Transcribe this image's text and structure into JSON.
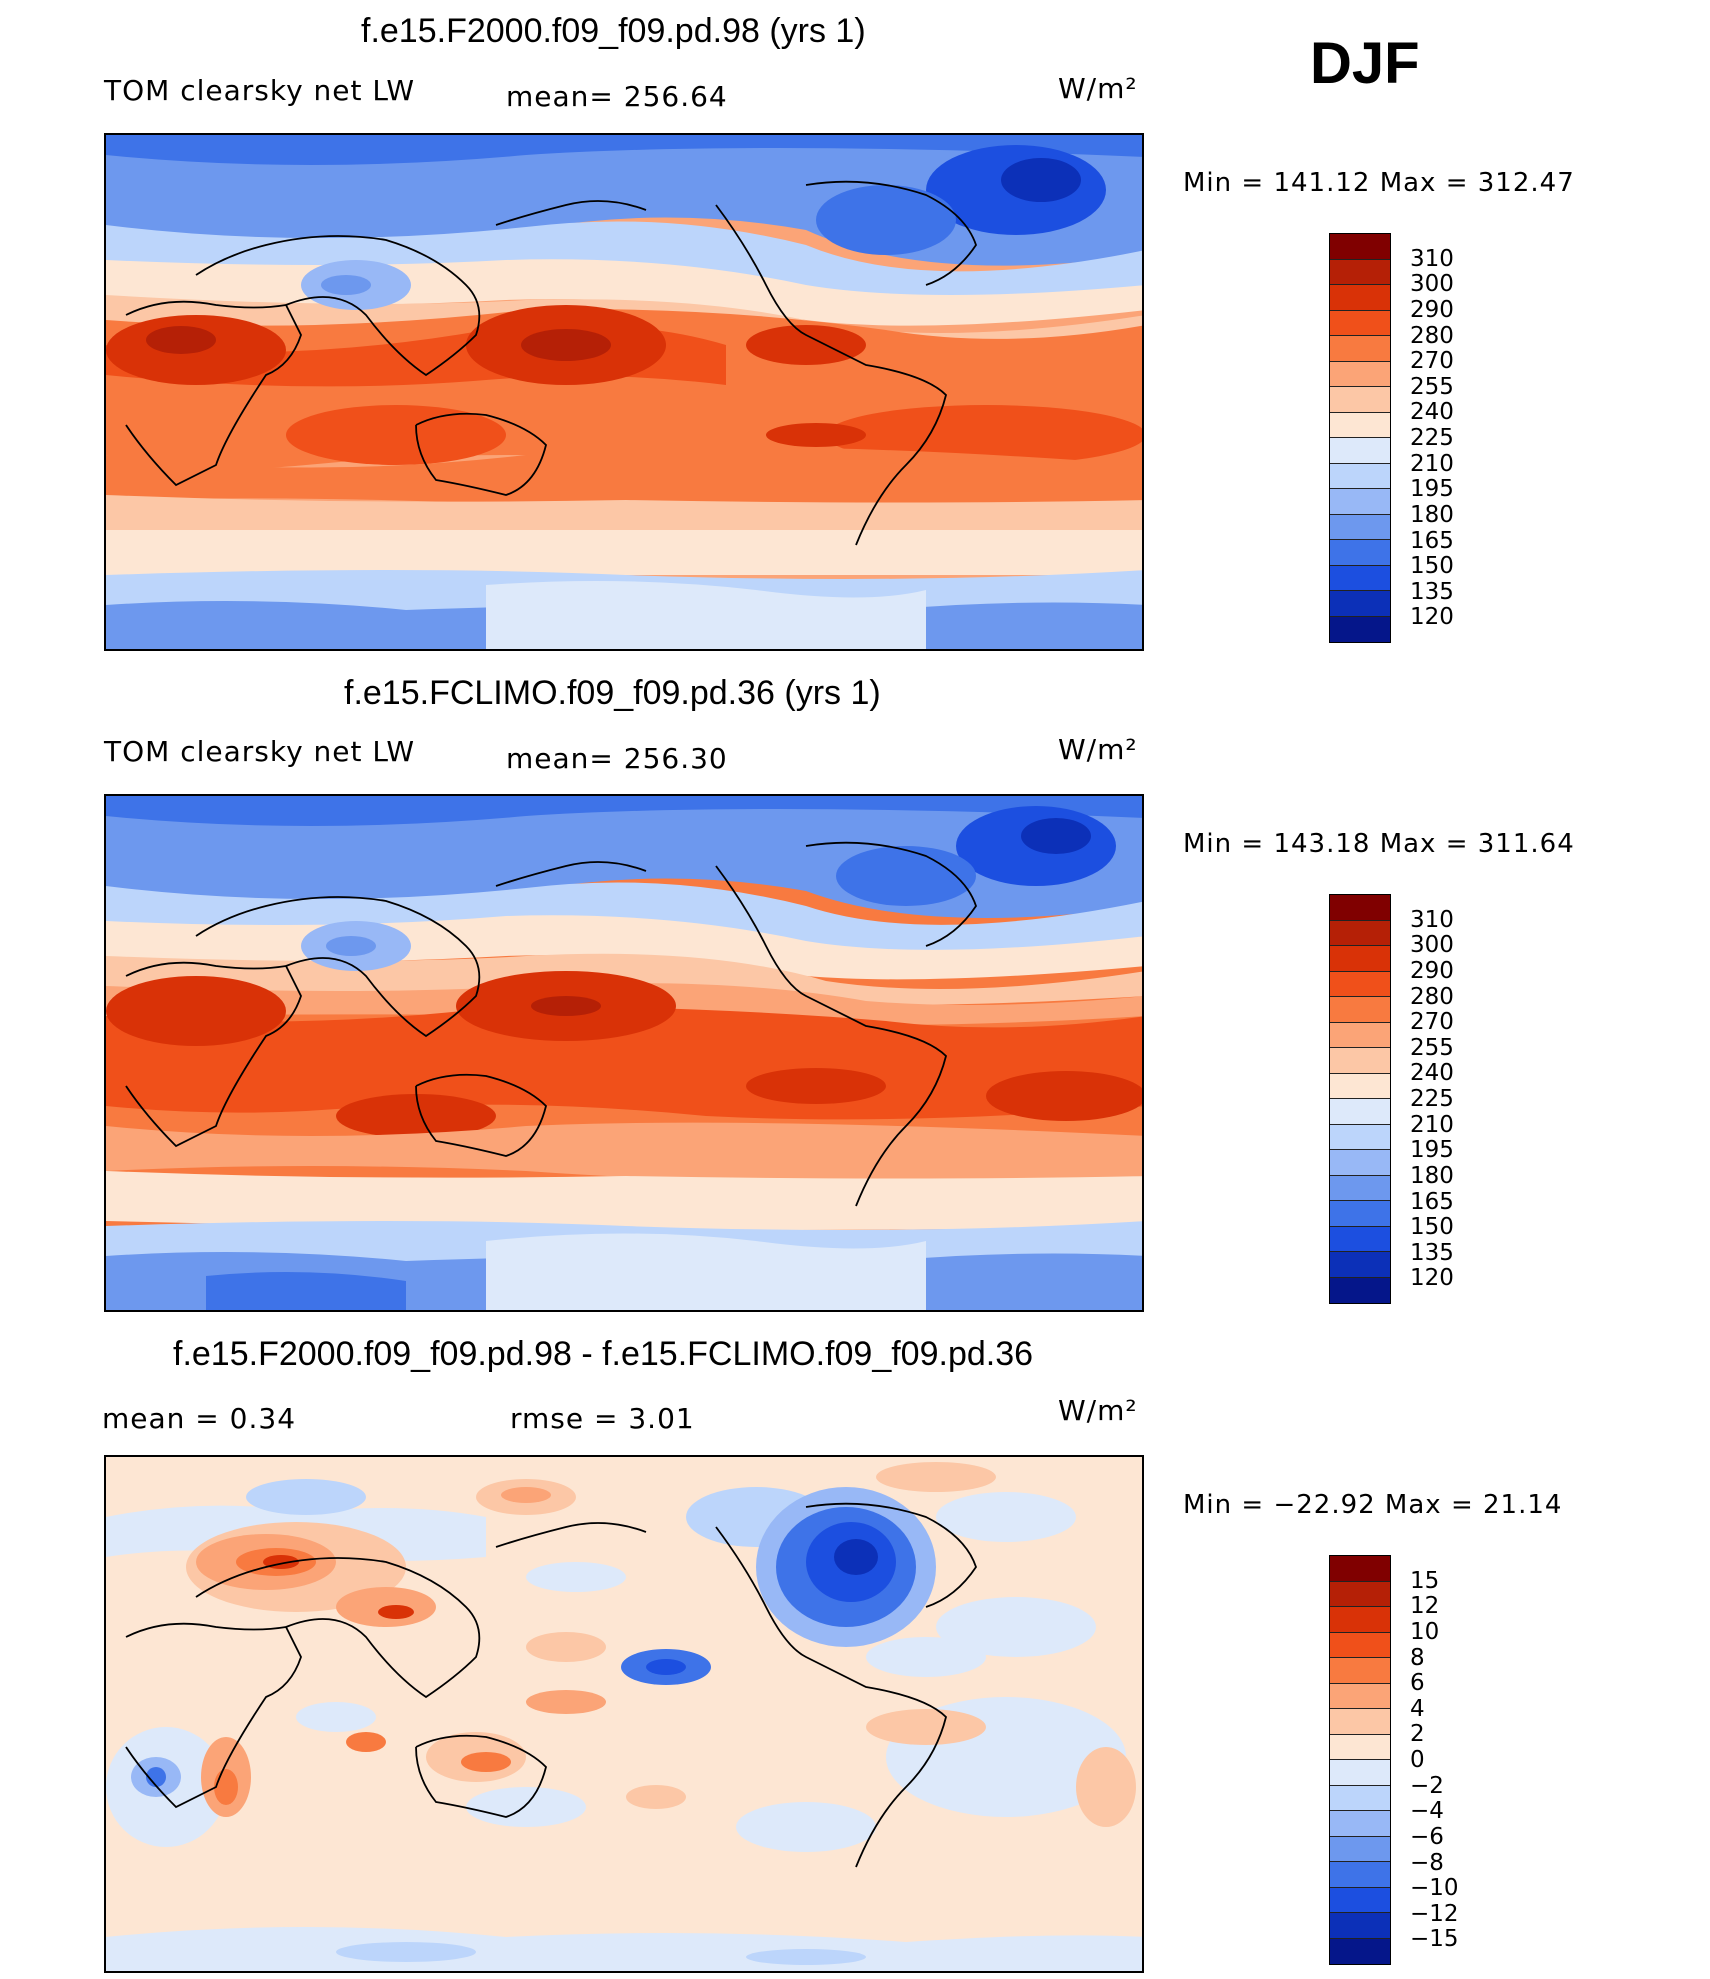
{
  "season": "DJF",
  "panels": [
    {
      "title": "f.e15.F2000.f09_f09.pd.98 (yrs 1)",
      "left_label": "TOM clearsky net LW",
      "center_label": "mean= 256.64",
      "units": "W/m²",
      "minmax": "Min = 141.12 Max = 312.47",
      "colorbar": {
        "levels": [
          "310",
          "300",
          "290",
          "280",
          "270",
          "255",
          "240",
          "225",
          "210",
          "195",
          "180",
          "165",
          "150",
          "135",
          "120"
        ],
        "colors": [
          "#800000",
          "#b52006",
          "#d93207",
          "#f0501a",
          "#f87a40",
          "#fba477",
          "#fcc7a6",
          "#fde6d3",
          "#dde9fa",
          "#bcd5fb",
          "#98b8f6",
          "#6d98ee",
          "#3e73e8",
          "#1c4fe0",
          "#0c30b8",
          "#05168a"
        ]
      }
    },
    {
      "title": "f.e15.FCLIMO.f09_f09.pd.36 (yrs 1)",
      "left_label": "TOM clearsky net LW",
      "center_label": "mean= 256.30",
      "units": "W/m²",
      "minmax": "Min = 143.18 Max = 311.64",
      "colorbar": {
        "levels": [
          "310",
          "300",
          "290",
          "280",
          "270",
          "255",
          "240",
          "225",
          "210",
          "195",
          "180",
          "165",
          "150",
          "135",
          "120"
        ],
        "colors": [
          "#800000",
          "#b52006",
          "#d93207",
          "#f0501a",
          "#f87a40",
          "#fba477",
          "#fcc7a6",
          "#fde6d3",
          "#dde9fa",
          "#bcd5fb",
          "#98b8f6",
          "#6d98ee",
          "#3e73e8",
          "#1c4fe0",
          "#0c30b8",
          "#05168a"
        ]
      }
    },
    {
      "title": "f.e15.F2000.f09_f09.pd.98 - f.e15.FCLIMO.f09_f09.pd.36",
      "left_label": "mean =     0.34",
      "center_label": "rmse =     3.01",
      "units": "W/m²",
      "minmax": "Min = −22.92 Max =   21.14",
      "colorbar": {
        "levels": [
          "15",
          "12",
          "10",
          "8",
          "6",
          "4",
          "2",
          "0",
          "−2",
          "−4",
          "−6",
          "−8",
          "−10",
          "−12",
          "−15"
        ],
        "colors": [
          "#800000",
          "#b52006",
          "#d93207",
          "#f0501a",
          "#f87a40",
          "#fba477",
          "#fcc7a6",
          "#fde6d3",
          "#dde9fa",
          "#bcd5fb",
          "#98b8f6",
          "#6d98ee",
          "#3e73e8",
          "#1c4fe0",
          "#0c30b8",
          "#05168a"
        ]
      }
    }
  ]
}
